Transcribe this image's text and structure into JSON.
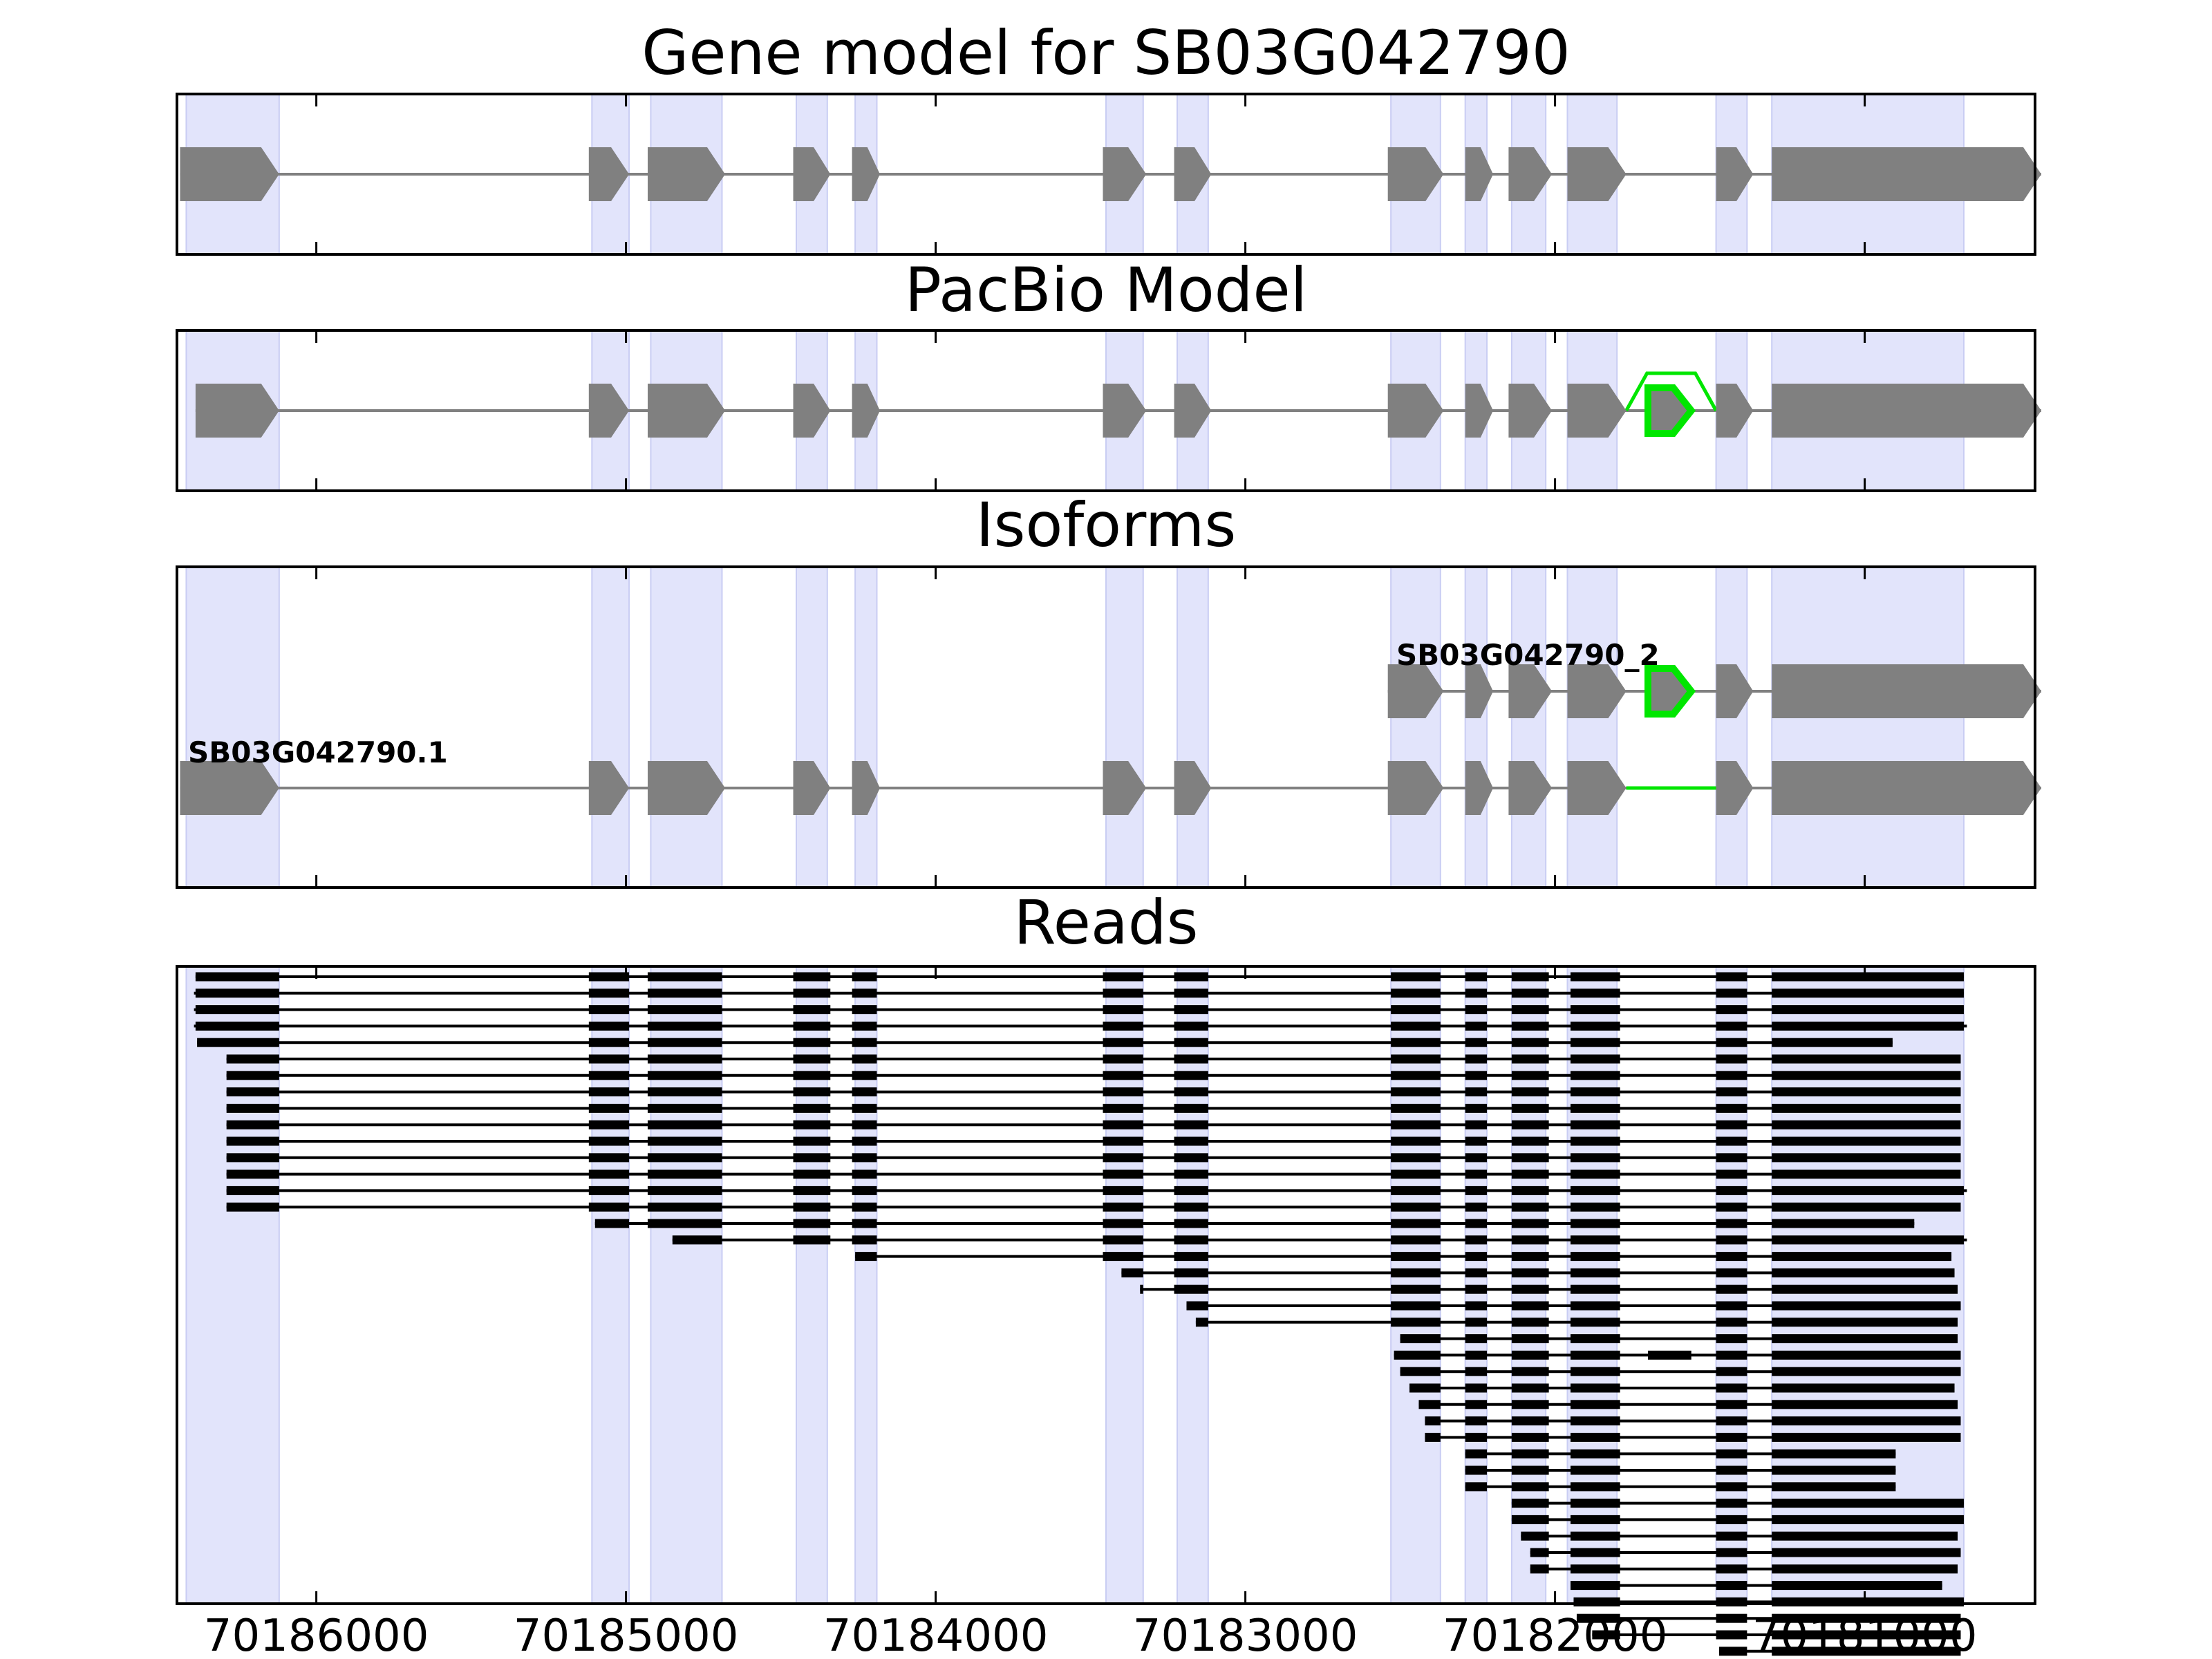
{
  "chart_data": {
    "type": "gene-model-track",
    "strand": "minus",
    "orientation": "reversed-x",
    "xlim": [
      70186450,
      70180450
    ],
    "xticks": [
      70186000,
      70185000,
      70184000,
      70183000,
      70182000,
      70181000
    ],
    "xtick_labels": [
      "70186000",
      "70185000",
      "70184000",
      "70183000",
      "70182000",
      "70181000"
    ],
    "colors": {
      "highlight": "#e2e4fb",
      "exon": "#808080",
      "alt": "#00e600",
      "read": "#000000",
      "axis": "#000000"
    },
    "highlight_regions": [
      [
        70186420,
        70186120
      ],
      [
        70185110,
        70184990
      ],
      [
        70184920,
        70184690
      ],
      [
        70184450,
        70184350
      ],
      [
        70184260,
        70184190
      ],
      [
        70183450,
        70183330
      ],
      [
        70183220,
        70183120
      ],
      [
        70182530,
        70182370
      ],
      [
        70182290,
        70182220
      ],
      [
        70182140,
        70182030
      ],
      [
        70181960,
        70181800
      ],
      [
        70181480,
        70181380
      ],
      [
        70181300,
        70180680
      ]
    ],
    "panels": [
      {
        "title": "Gene model for SB03G042790",
        "tracks": [
          {
            "exons": [
              [
                70186440,
                70186120
              ],
              [
                70185120,
                70184990
              ],
              [
                70184930,
                70184680
              ],
              [
                70184460,
                70184340
              ],
              [
                70184270,
                70184180
              ],
              [
                70183460,
                70183320
              ],
              [
                70183230,
                70183110
              ],
              [
                70182540,
                70182360
              ],
              [
                70182290,
                70182200
              ],
              [
                70182150,
                70182010
              ],
              [
                70181960,
                70181770
              ],
              [
                70181480,
                70181360
              ],
              [
                70181300,
                70180430
              ]
            ]
          }
        ]
      },
      {
        "title": "PacBio Model",
        "tracks": [
          {
            "exons": [
              [
                70186390,
                70186120
              ],
              [
                70185120,
                70184990
              ],
              [
                70184930,
                70184680
              ],
              [
                70184460,
                70184340
              ],
              [
                70184270,
                70184180
              ],
              [
                70183460,
                70183320
              ],
              [
                70183230,
                70183110
              ],
              [
                70182540,
                70182360
              ],
              [
                70182290,
                70182200
              ],
              [
                70182150,
                70182010
              ],
              [
                70181960,
                70181770
              ],
              [
                70181480,
                70181360
              ],
              [
                70181300,
                70180430
              ]
            ],
            "alt_exon": [
              70181700,
              70181560
            ],
            "alt_arc": [
              70181770,
              70181480
            ]
          }
        ]
      },
      {
        "title": "Isoforms",
        "tracks": [
          {
            "label": "SB03G042790_2",
            "exons": [
              [
                70182540,
                70182360
              ],
              [
                70182290,
                70182200
              ],
              [
                70182150,
                70182010
              ],
              [
                70181960,
                70181770
              ],
              [
                70181480,
                70181360
              ],
              [
                70181300,
                70180430
              ]
            ],
            "alt_exon": [
              70181700,
              70181560
            ]
          },
          {
            "label": "SB03G042790.1",
            "exons": [
              [
                70186440,
                70186120
              ],
              [
                70185120,
                70184990
              ],
              [
                70184930,
                70184680
              ],
              [
                70184460,
                70184340
              ],
              [
                70184270,
                70184180
              ],
              [
                70183460,
                70183320
              ],
              [
                70183230,
                70183110
              ],
              [
                70182540,
                70182360
              ],
              [
                70182290,
                70182200
              ],
              [
                70182150,
                70182010
              ],
              [
                70181960,
                70181770
              ],
              [
                70181480,
                70181360
              ],
              [
                70181300,
                70180430
              ]
            ],
            "alt_skip": [
              70181770,
              70181480
            ]
          }
        ]
      },
      {
        "title": "Reads"
      }
    ],
    "reads_full_exons": [
      [
        70186390,
        70186120
      ],
      [
        70185120,
        70184990
      ],
      [
        70184930,
        70184690
      ],
      [
        70184460,
        70184340
      ],
      [
        70184270,
        70184190
      ],
      [
        70183460,
        70183330
      ],
      [
        70183230,
        70183120
      ],
      [
        70182530,
        70182370
      ],
      [
        70182290,
        70182220
      ],
      [
        70182140,
        70182020
      ],
      [
        70181950,
        70181790
      ],
      [
        70181480,
        70181380
      ],
      [
        70181300,
        70180680
      ]
    ],
    "reads": [
      {
        "start": 70186390,
        "end": 70180680
      },
      {
        "start": 70186395,
        "end": 70180680
      },
      {
        "start": 70186395,
        "end": 70180680
      },
      {
        "start": 70186395,
        "end": 70180670
      },
      {
        "start": 70186385,
        "end": 70180910
      },
      {
        "start": 70186290,
        "end": 70180690
      },
      {
        "start": 70186290,
        "end": 70180690
      },
      {
        "start": 70186290,
        "end": 70180690
      },
      {
        "start": 70186290,
        "end": 70180690
      },
      {
        "start": 70186290,
        "end": 70180690
      },
      {
        "start": 70186290,
        "end": 70180690
      },
      {
        "start": 70186290,
        "end": 70180690
      },
      {
        "start": 70186290,
        "end": 70180690
      },
      {
        "start": 70186290,
        "end": 70180670
      },
      {
        "start": 70186290,
        "end": 70180690
      },
      {
        "start": 70185100,
        "end": 70180840
      },
      {
        "start": 70184850,
        "end": 70180670
      },
      {
        "start": 70184260,
        "end": 70180720
      },
      {
        "start": 70183400,
        "end": 70180710
      },
      {
        "start": 70183340,
        "end": 70180700
      },
      {
        "start": 70183190,
        "end": 70180690
      },
      {
        "start": 70183160,
        "end": 70180700
      },
      {
        "start": 70182500,
        "end": 70180700
      },
      {
        "start": 70182520,
        "end": 70180690,
        "alt": true
      },
      {
        "start": 70182500,
        "end": 70180690
      },
      {
        "start": 70182470,
        "end": 70180710
      },
      {
        "start": 70182440,
        "end": 70180700
      },
      {
        "start": 70182420,
        "end": 70180690
      },
      {
        "start": 70182420,
        "end": 70180690
      },
      {
        "start": 70182290,
        "end": 70180900
      },
      {
        "start": 70182290,
        "end": 70180900
      },
      {
        "start": 70182290,
        "end": 70180900
      },
      {
        "start": 70182140,
        "end": 70180680
      },
      {
        "start": 70182140,
        "end": 70180680
      },
      {
        "start": 70182110,
        "end": 70180700
      },
      {
        "start": 70182080,
        "end": 70180690
      },
      {
        "start": 70182080,
        "end": 70180700
      },
      {
        "start": 70181950,
        "end": 70180750
      },
      {
        "start": 70181940,
        "end": 70180680
      },
      {
        "start": 70181930,
        "end": 70180690
      },
      {
        "start": 70181880,
        "end": 70180690
      },
      {
        "start": 70181470,
        "end": 70180690
      },
      {
        "start": 70181440,
        "end": 70180690
      },
      {
        "start": 70181430,
        "end": 70180900
      }
    ]
  }
}
